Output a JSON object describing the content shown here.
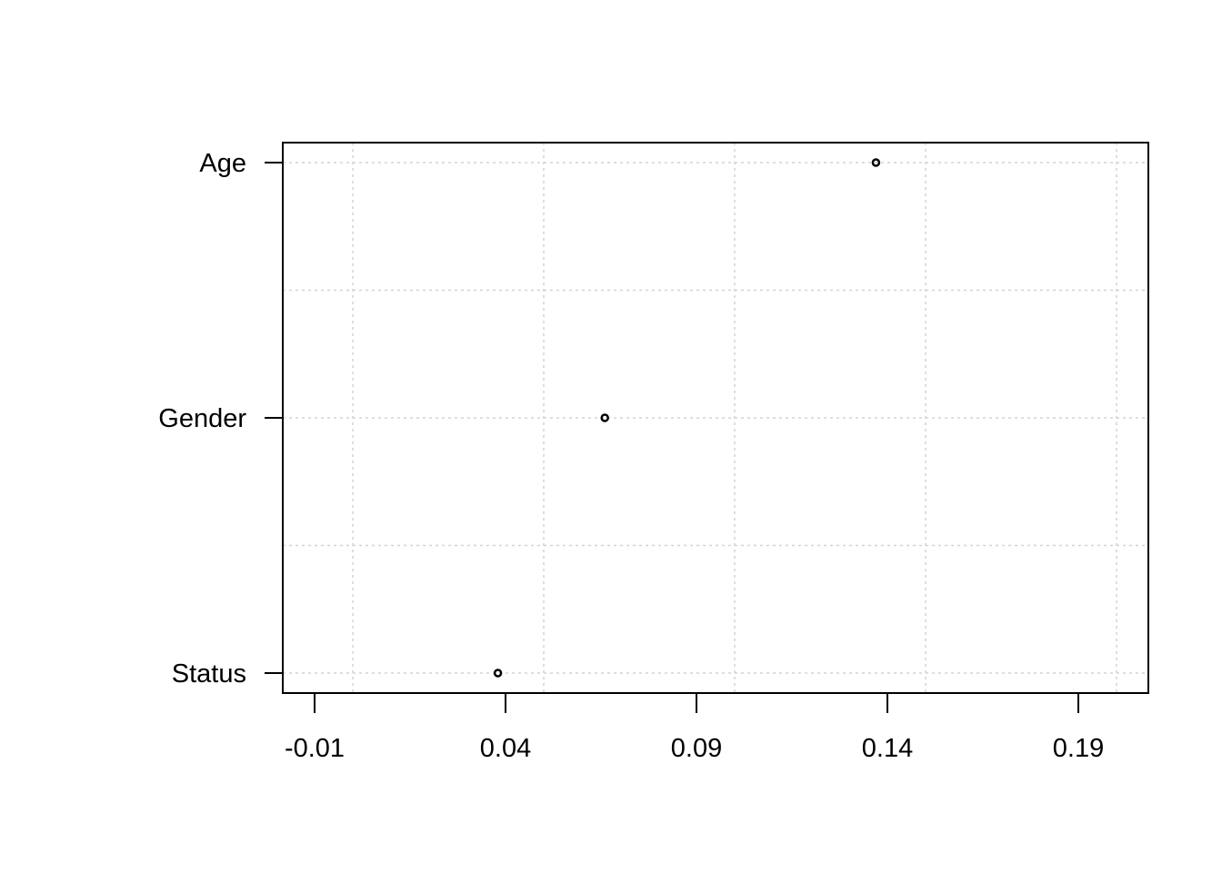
{
  "chart_data": {
    "type": "scatter",
    "subtype": "dotchart",
    "title": "",
    "xlabel": "",
    "ylabel": "",
    "categories": [
      "Age",
      "Gender",
      "Status"
    ],
    "series": [
      {
        "values": [
          0.137,
          0.066,
          0.038
        ]
      }
    ],
    "x_ticks": [
      "-0.01",
      "0.04",
      "0.09",
      "0.14",
      "0.19"
    ],
    "xlim": [
      -0.0184,
      0.2084
    ],
    "grid": true,
    "legend": "none",
    "colors": {
      "points": "#000000",
      "grid": "#d3d3d3",
      "axis": "#000000",
      "background": "#ffffff"
    }
  }
}
